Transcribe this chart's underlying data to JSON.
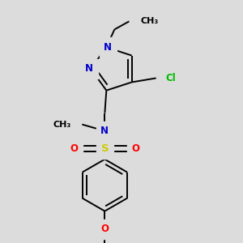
{
  "bg_color": "#dcdcdc",
  "bond_color": "#000000",
  "N_color": "#0000cc",
  "O_color": "#ff0000",
  "S_color": "#cccc00",
  "Cl_color": "#00bb00",
  "line_width": 1.4,
  "font_size": 8.5,
  "fig_width": 3.0,
  "fig_height": 3.0,
  "dpi": 100,
  "xlim": [
    0,
    300
  ],
  "ylim": [
    0,
    300
  ]
}
